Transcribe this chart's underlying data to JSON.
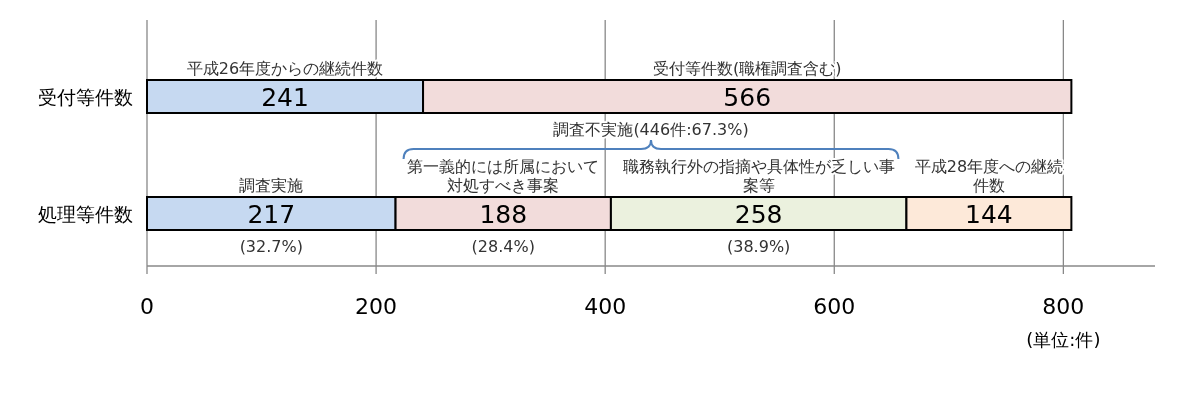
{
  "chart_data": {
    "type": "bar",
    "orientation": "horizontal",
    "stacked": true,
    "xlabel": "(単位:件)",
    "categories": [
      "受付等件数",
      "処理等件数"
    ],
    "series": [
      {
        "color": "#c6d9f1",
        "values": [
          241,
          217
        ]
      },
      {
        "color": "#f2dcdb",
        "values": [
          566,
          188
        ]
      },
      {
        "color": "#ebf1de",
        "values": [
          null,
          258
        ]
      },
      {
        "color": "#fde9d9",
        "values": [
          null,
          144
        ]
      }
    ],
    "xlim": [
      0,
      880
    ],
    "xticks": [
      0,
      200,
      400,
      600,
      800
    ],
    "grid": "x",
    "data_labels": true,
    "annotations": [
      "平成26年度からの継続件数",
      "受付等件数(職権調査含む)",
      "調査実施",
      "第一義的には所属において対処すべき事案",
      "職務執行外の指摘や具体性が乏しい事案等",
      "平成28年度への継続件数",
      "(32.7%)",
      "(28.4%)",
      "(38.9%)",
      "調査不実施(446件:67.3%)"
    ]
  }
}
